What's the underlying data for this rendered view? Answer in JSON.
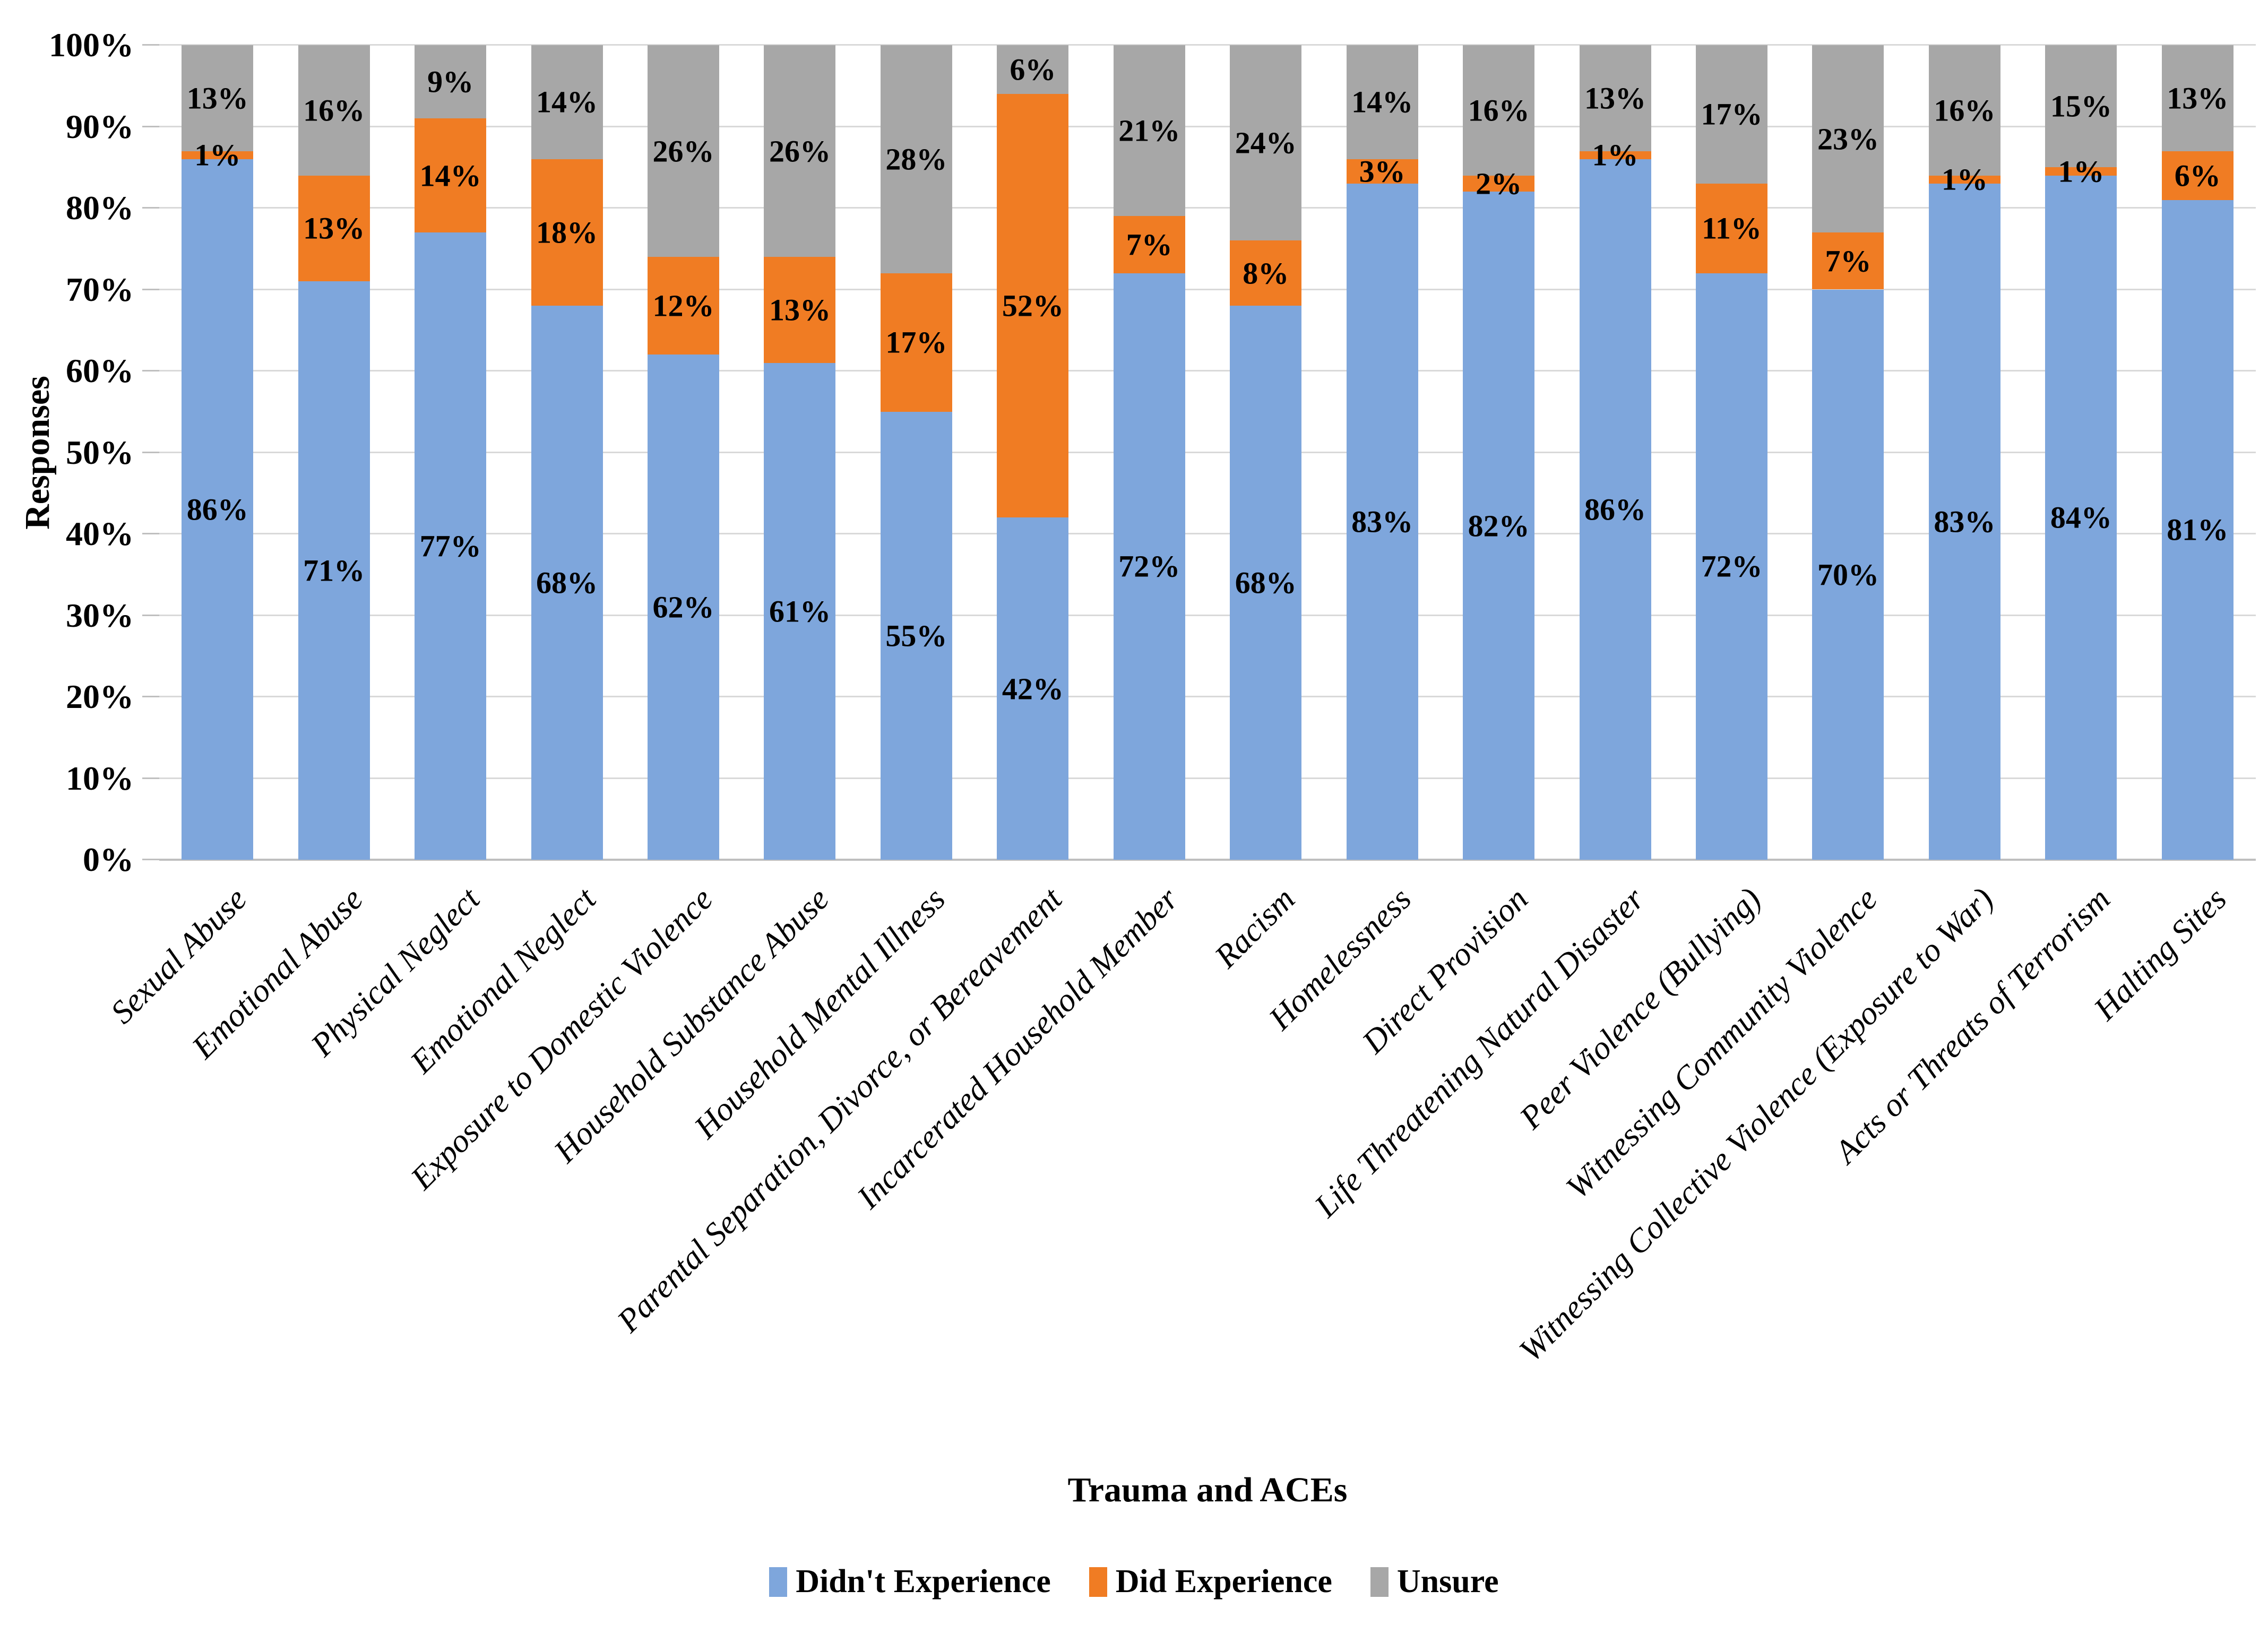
{
  "page": {
    "background": "#ffffff"
  },
  "chart_data": {
    "type": "bar",
    "stacked": true,
    "percent_stacked": true,
    "title": "",
    "xlabel": "Trauma and ACEs",
    "ylabel": "Responses",
    "ylim": [
      0,
      100
    ],
    "grid": "horizontal",
    "legend_position": "bottom",
    "label_suffix": "%",
    "y_ticks": [
      "0%",
      "10%",
      "20%",
      "30%",
      "40%",
      "50%",
      "60%",
      "70%",
      "80%",
      "90%",
      "100%"
    ],
    "categories": [
      "Sexual Abuse",
      "Emotional Abuse",
      "Physical Neglect",
      "Emotional Neglect",
      "Exposure to Domestic Violence",
      "Household Substance Abuse",
      "Household Mental Illness",
      "Parental Separation, Divorce, or Bereavement",
      "Incarcerated Household Member",
      "Racism",
      "Homelessness",
      "Direct Provision",
      "Life Threatening Natural Disaster",
      "Peer Violence (Bullying)",
      "Witnessing Community Violence",
      "Witnessing Collective Violence (Exposure to War)",
      "Acts or Threats of Terrorism",
      "Halting Sites"
    ],
    "series": [
      {
        "name": "Didn't Experience",
        "color": "#7EA6DC",
        "values": [
          86,
          71,
          77,
          68,
          62,
          61,
          55,
          42,
          72,
          68,
          83,
          82,
          86,
          72,
          70,
          83,
          84,
          81
        ]
      },
      {
        "name": "Did Experience",
        "color": "#F07C23",
        "values": [
          1,
          13,
          14,
          18,
          12,
          13,
          17,
          52,
          7,
          8,
          3,
          2,
          1,
          11,
          7,
          1,
          1,
          6
        ]
      },
      {
        "name": "Unsure",
        "color": "#A7A7A7",
        "values": [
          13,
          16,
          9,
          14,
          26,
          26,
          28,
          6,
          21,
          24,
          14,
          16,
          13,
          17,
          23,
          16,
          15,
          13
        ]
      }
    ],
    "colors": {
      "gridline": "#D9D9D9",
      "axis": "#BFBFBF",
      "label_text": "#000000"
    }
  }
}
